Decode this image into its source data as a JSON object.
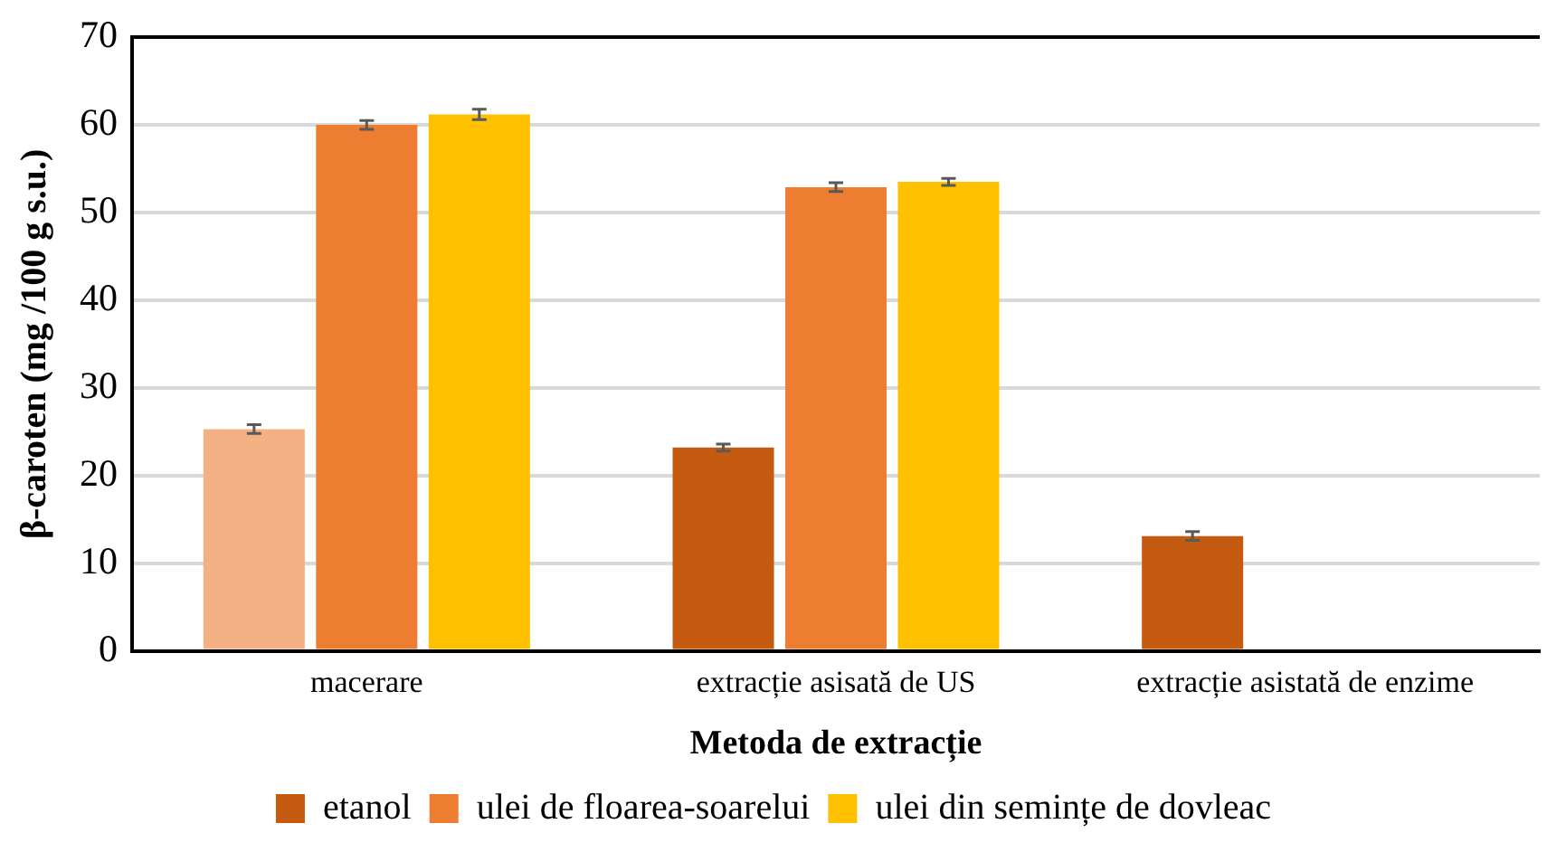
{
  "chart_data": {
    "type": "bar",
    "xlabel": "Metoda de extracție",
    "ylabel": "β-caroten (mg /100 g s.u.)",
    "categories": [
      "macerare",
      "extracție asisată de US",
      "extracție asistată de enzime"
    ],
    "series": [
      {
        "name": "etanol",
        "color": "#c55a11",
        "colors": [
          "#f4b183",
          "#c55a11",
          "#c55a11"
        ],
        "values": [
          25.3,
          23.2,
          13.1
        ],
        "errors": [
          0.5,
          0.4,
          0.5
        ]
      },
      {
        "name": "ulei de floarea-soarelui",
        "color": "#ed7d31",
        "values": [
          60.0,
          52.9,
          null
        ],
        "errors": [
          0.5,
          0.5,
          null
        ]
      },
      {
        "name": "ulei din semințe de dovleac",
        "color": "#ffc000",
        "values": [
          61.2,
          53.5,
          null
        ],
        "errors": [
          0.6,
          0.4,
          null
        ]
      }
    ],
    "ylim": [
      0,
      70
    ],
    "yticks": [
      0,
      10,
      20,
      30,
      40,
      50,
      60,
      70
    ],
    "grid": "y",
    "legend": "bottom"
  }
}
